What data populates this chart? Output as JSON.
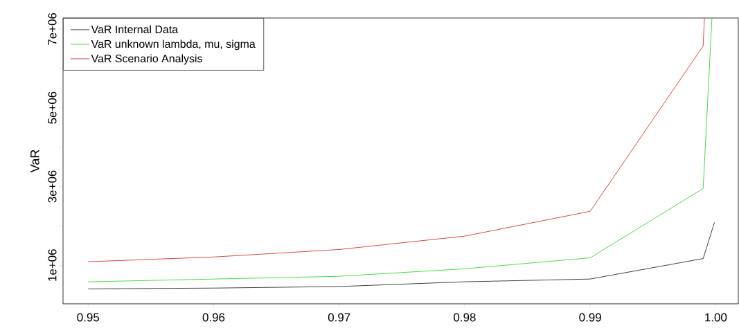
{
  "chart_data": {
    "type": "line",
    "ylabel": "VaR",
    "xlim": [
      0.948,
      1.0018
    ],
    "ylim": [
      20000,
      7280000
    ],
    "xticks": [
      {
        "value": 0.95,
        "label": "0.95"
      },
      {
        "value": 0.96,
        "label": "0.96"
      },
      {
        "value": 0.97,
        "label": "0.97"
      },
      {
        "value": 0.98,
        "label": "0.98"
      },
      {
        "value": 0.99,
        "label": "0.99"
      },
      {
        "value": 1.0,
        "label": "1.00"
      }
    ],
    "yticks": [
      {
        "value": 1000000,
        "label": "1e+06"
      },
      {
        "value": 2000000,
        "label": null
      },
      {
        "value": 3000000,
        "label": "3e+06"
      },
      {
        "value": 4000000,
        "label": null
      },
      {
        "value": 5000000,
        "label": "5e+06"
      },
      {
        "value": 6000000,
        "label": null
      },
      {
        "value": 7000000,
        "label": "7e+06"
      }
    ],
    "legend": "top left",
    "grid": false,
    "marker": "none",
    "line_style": "solid",
    "series": [
      {
        "name": "VaR Internal Data",
        "color": "#404040",
        "x": [
          0.95,
          0.96,
          0.97,
          0.98,
          0.99,
          0.999,
          0.9999
        ],
        "values": [
          400000,
          420000,
          460000,
          580000,
          650000,
          1170000,
          2090000
        ]
      },
      {
        "name": "VaR unknown lambda, mu, sigma",
        "color": "#44dd44",
        "x": [
          0.95,
          0.96,
          0.97,
          0.98,
          0.99,
          0.999,
          0.9997
        ],
        "values": [
          580000,
          650000,
          720000,
          910000,
          1190000,
          2950000,
          7280000
        ]
      },
      {
        "name": "VaR Scenario Analysis",
        "color": "#dd4444",
        "x": [
          0.95,
          0.96,
          0.97,
          0.98,
          0.99,
          0.999,
          0.9991
        ],
        "values": [
          1090000,
          1210000,
          1400000,
          1740000,
          2370000,
          6570000,
          7280000
        ]
      }
    ]
  }
}
